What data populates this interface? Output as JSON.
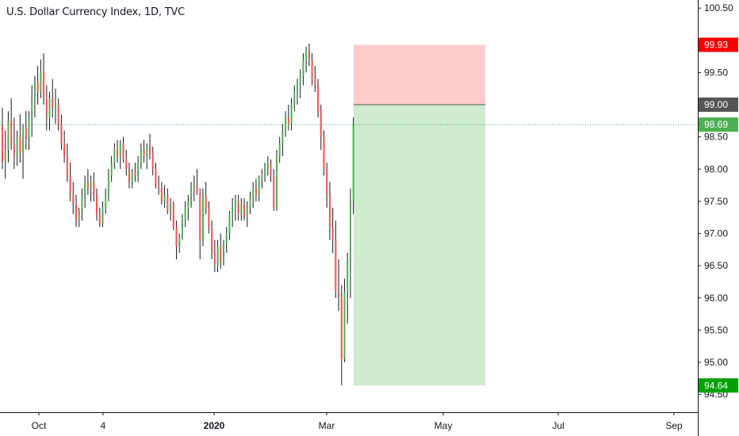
{
  "chart_data": {
    "type": "candlestick",
    "title": "U.S. Dollar Currency Index, 1D, TVC",
    "ylim": [
      94.2,
      100.65
    ],
    "y_ticks": [
      "100.50",
      "99.50",
      "99.00",
      "98.50",
      "98.00",
      "97.50",
      "97.00",
      "96.50",
      "96.00",
      "95.50",
      "95.00",
      "94.50"
    ],
    "y_tick_values": [
      100.5,
      99.5,
      99.0,
      98.5,
      98.0,
      97.5,
      97.0,
      96.5,
      96.0,
      95.5,
      95.0,
      94.5
    ],
    "x_ticks": [
      {
        "label": "Oct",
        "bold": false
      },
      {
        "label": "4",
        "bold": false
      },
      {
        "label": "2020",
        "bold": true
      },
      {
        "label": "Mar",
        "bold": false
      },
      {
        "label": "May",
        "bold": false
      },
      {
        "label": "Jul",
        "bold": false
      },
      {
        "label": "Sep",
        "bold": false
      }
    ],
    "current_price": {
      "value": 98.69,
      "label": "98.69",
      "color": "#4caf50"
    },
    "position": {
      "type": "short",
      "entry": {
        "value": 99.0,
        "label": "99.00",
        "color": "#555555"
      },
      "stop": {
        "value": 99.93,
        "label": "99.93",
        "color": "#f40000"
      },
      "target": {
        "value": 94.64,
        "label": "94.64",
        "color": "#00a000"
      },
      "stop_fill": "#ffcccc",
      "target_fill": "#cdebcd"
    },
    "up_color": "#4caf50",
    "down_color": "#ef5350",
    "candles": [
      [
        98.7,
        98.95,
        98.0,
        98.1
      ],
      [
        98.1,
        98.6,
        97.85,
        98.3
      ],
      [
        98.3,
        98.9,
        98.1,
        98.75
      ],
      [
        98.75,
        99.1,
        98.3,
        98.4
      ],
      [
        98.4,
        98.8,
        98.0,
        98.2
      ],
      [
        98.2,
        98.6,
        98.05,
        98.5
      ],
      [
        98.5,
        98.85,
        98.1,
        98.25
      ],
      [
        98.25,
        98.7,
        97.85,
        98.65
      ],
      [
        98.65,
        98.9,
        98.3,
        98.45
      ],
      [
        98.45,
        98.9,
        98.3,
        98.8
      ],
      [
        98.8,
        99.3,
        98.5,
        99.1
      ],
      [
        99.1,
        99.45,
        98.8,
        99.35
      ],
      [
        99.35,
        99.6,
        99.0,
        99.2
      ],
      [
        99.2,
        99.7,
        99.1,
        99.5
      ],
      [
        99.5,
        99.8,
        99.0,
        99.1
      ],
      [
        99.1,
        99.3,
        98.6,
        98.8
      ],
      [
        98.8,
        99.2,
        98.6,
        99.1
      ],
      [
        99.1,
        99.4,
        98.8,
        98.95
      ],
      [
        98.95,
        99.25,
        98.7,
        99.0
      ],
      [
        99.0,
        99.1,
        98.6,
        98.7
      ],
      [
        98.7,
        98.85,
        98.3,
        98.4
      ],
      [
        98.4,
        98.6,
        98.1,
        98.2
      ],
      [
        98.2,
        98.4,
        97.8,
        97.9
      ],
      [
        97.9,
        98.1,
        97.5,
        97.6
      ],
      [
        97.6,
        97.8,
        97.3,
        97.45
      ],
      [
        97.45,
        97.6,
        97.1,
        97.2
      ],
      [
        97.2,
        97.4,
        97.1,
        97.35
      ],
      [
        97.35,
        97.7,
        97.2,
        97.6
      ],
      [
        97.6,
        97.9,
        97.4,
        97.8
      ],
      [
        97.8,
        98.0,
        97.6,
        97.7
      ],
      [
        97.7,
        97.9,
        97.5,
        97.8
      ],
      [
        97.8,
        97.95,
        97.5,
        97.6
      ],
      [
        97.6,
        97.7,
        97.2,
        97.3
      ],
      [
        97.3,
        97.4,
        97.1,
        97.15
      ],
      [
        97.15,
        97.5,
        97.1,
        97.4
      ],
      [
        97.4,
        97.7,
        97.3,
        97.6
      ],
      [
        97.6,
        98.0,
        97.5,
        97.9
      ],
      [
        97.9,
        98.2,
        97.8,
        98.1
      ],
      [
        98.1,
        98.4,
        98.0,
        98.3
      ],
      [
        98.3,
        98.45,
        98.1,
        98.2
      ],
      [
        98.2,
        98.45,
        98.0,
        98.4
      ],
      [
        98.4,
        98.5,
        98.1,
        98.15
      ],
      [
        98.15,
        98.3,
        97.9,
        98.0
      ],
      [
        98.0,
        98.1,
        97.7,
        97.8
      ],
      [
        97.8,
        98.0,
        97.7,
        97.95
      ],
      [
        97.95,
        98.1,
        97.8,
        97.9
      ],
      [
        97.9,
        98.2,
        97.8,
        98.1
      ],
      [
        98.1,
        98.4,
        98.0,
        98.3
      ],
      [
        98.3,
        98.45,
        98.1,
        98.2
      ],
      [
        98.2,
        98.4,
        98.0,
        98.35
      ],
      [
        98.35,
        98.55,
        98.15,
        98.25
      ],
      [
        98.25,
        98.35,
        97.9,
        98.0
      ],
      [
        98.0,
        98.1,
        97.7,
        97.75
      ],
      [
        97.75,
        97.9,
        97.6,
        97.7
      ],
      [
        97.7,
        97.8,
        97.45,
        97.5
      ],
      [
        97.5,
        97.75,
        97.4,
        97.6
      ],
      [
        97.6,
        97.7,
        97.3,
        97.35
      ],
      [
        97.35,
        97.55,
        97.2,
        97.45
      ],
      [
        97.45,
        97.5,
        97.05,
        97.1
      ],
      [
        97.1,
        97.2,
        96.6,
        96.8
      ],
      [
        96.8,
        97.0,
        96.7,
        96.95
      ],
      [
        96.95,
        97.3,
        96.9,
        97.2
      ],
      [
        97.2,
        97.5,
        97.1,
        97.4
      ],
      [
        97.4,
        97.6,
        97.2,
        97.5
      ],
      [
        97.5,
        97.8,
        97.4,
        97.7
      ],
      [
        97.7,
        97.9,
        97.5,
        97.75
      ],
      [
        97.75,
        98.0,
        97.6,
        97.6
      ],
      [
        97.6,
        97.7,
        96.6,
        96.9
      ],
      [
        96.9,
        97.7,
        96.8,
        97.6
      ],
      [
        97.6,
        97.8,
        97.3,
        97.4
      ],
      [
        97.4,
        97.5,
        97.0,
        97.1
      ],
      [
        97.1,
        97.2,
        96.6,
        96.7
      ],
      [
        96.7,
        96.9,
        96.4,
        96.5
      ],
      [
        96.5,
        96.9,
        96.4,
        96.8
      ],
      [
        96.8,
        97.0,
        96.45,
        96.55
      ],
      [
        96.55,
        96.9,
        96.5,
        96.85
      ],
      [
        96.85,
        97.1,
        96.7,
        97.0
      ],
      [
        97.0,
        97.35,
        96.9,
        97.3
      ],
      [
        97.3,
        97.55,
        97.1,
        97.4
      ],
      [
        97.4,
        97.6,
        97.2,
        97.5
      ],
      [
        97.5,
        97.6,
        97.2,
        97.3
      ],
      [
        97.3,
        97.55,
        97.2,
        97.45
      ],
      [
        97.45,
        97.55,
        97.2,
        97.25
      ],
      [
        97.25,
        97.5,
        97.1,
        97.4
      ],
      [
        97.4,
        97.65,
        97.3,
        97.55
      ],
      [
        97.55,
        97.8,
        97.4,
        97.7
      ],
      [
        97.7,
        97.85,
        97.5,
        97.6
      ],
      [
        97.6,
        97.9,
        97.5,
        97.85
      ],
      [
        97.85,
        98.0,
        97.7,
        97.9
      ],
      [
        97.9,
        98.1,
        97.8,
        98.0
      ],
      [
        98.0,
        98.2,
        97.9,
        98.1
      ],
      [
        98.1,
        98.15,
        97.8,
        97.9
      ],
      [
        97.9,
        98.0,
        97.35,
        97.4
      ],
      [
        97.4,
        98.3,
        97.35,
        98.2
      ],
      [
        98.2,
        98.5,
        98.1,
        98.4
      ],
      [
        98.4,
        98.7,
        98.2,
        98.6
      ],
      [
        98.6,
        98.9,
        98.5,
        98.8
      ],
      [
        98.8,
        99.0,
        98.6,
        98.7
      ],
      [
        98.7,
        99.1,
        98.6,
        99.0
      ],
      [
        99.0,
        99.3,
        98.9,
        99.2
      ],
      [
        99.2,
        99.4,
        99.0,
        99.35
      ],
      [
        99.35,
        99.55,
        99.1,
        99.45
      ],
      [
        99.45,
        99.8,
        99.3,
        99.7
      ],
      [
        99.7,
        99.9,
        99.5,
        99.85
      ],
      [
        99.85,
        99.95,
        99.6,
        99.7
      ],
      [
        99.7,
        99.8,
        99.3,
        99.4
      ],
      [
        99.4,
        99.6,
        99.2,
        99.3
      ],
      [
        99.3,
        99.4,
        98.8,
        98.9
      ],
      [
        98.9,
        99.0,
        98.3,
        98.5
      ],
      [
        98.5,
        98.6,
        97.9,
        98.0
      ],
      [
        98.0,
        98.1,
        97.4,
        97.6
      ],
      [
        97.6,
        97.8,
        96.9,
        97.1
      ],
      [
        97.1,
        97.4,
        96.7,
        96.9
      ],
      [
        96.9,
        97.2,
        96.0,
        96.1
      ],
      [
        96.1,
        96.6,
        95.8,
        96.0
      ],
      [
        96.0,
        96.2,
        94.64,
        95.05
      ],
      [
        95.05,
        96.3,
        95.0,
        96.1
      ],
      [
        96.1,
        96.7,
        95.6,
        96.6
      ],
      [
        96.6,
        97.7,
        96.0,
        97.5
      ],
      [
        97.5,
        98.8,
        97.3,
        98.69
      ]
    ]
  }
}
